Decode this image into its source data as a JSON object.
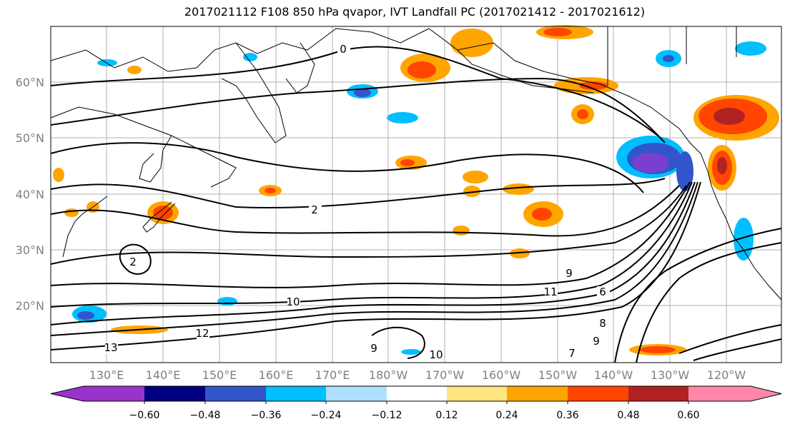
{
  "title": "2017021112 F108 850 hPa qvapor, IVT Landfall PC (2017021412 - 2017021612)",
  "map": {
    "lat_labels": [
      "60°N",
      "50°N",
      "40°N",
      "30°N",
      "20°N"
    ],
    "lon_labels": [
      "130°E",
      "140°E",
      "150°E",
      "160°E",
      "170°E",
      "180°W",
      "170°W",
      "160°W",
      "150°W",
      "140°W",
      "130°W",
      "120°W"
    ],
    "contour_labels": [
      "0",
      "2",
      "2",
      "12",
      "13",
      "10",
      "9",
      "11",
      "6",
      "8",
      "9",
      "7",
      "10",
      "9"
    ],
    "gridlines": true
  },
  "colorbar": {
    "ticks": [
      "−0.60",
      "−0.48",
      "−0.36",
      "−0.24",
      "−0.12",
      "0.12",
      "0.24",
      "0.36",
      "0.48",
      "0.60"
    ],
    "colors": [
      "#9933cc",
      "#000080",
      "#3355cc",
      "#00bfff",
      "#b0e0ff",
      "#ffffff",
      "#ffe680",
      "#ffa500",
      "#ff4500",
      "#b22222",
      "#ff88aa"
    ]
  },
  "colors": {
    "neg_strong": "#7b3fd0",
    "neg_mid": "#3355cc",
    "neg_light": "#00bfff",
    "pos_light": "#ffe680",
    "pos_mid": "#ffa500",
    "pos_strong": "#ff4500",
    "pos_dark": "#b22222"
  }
}
